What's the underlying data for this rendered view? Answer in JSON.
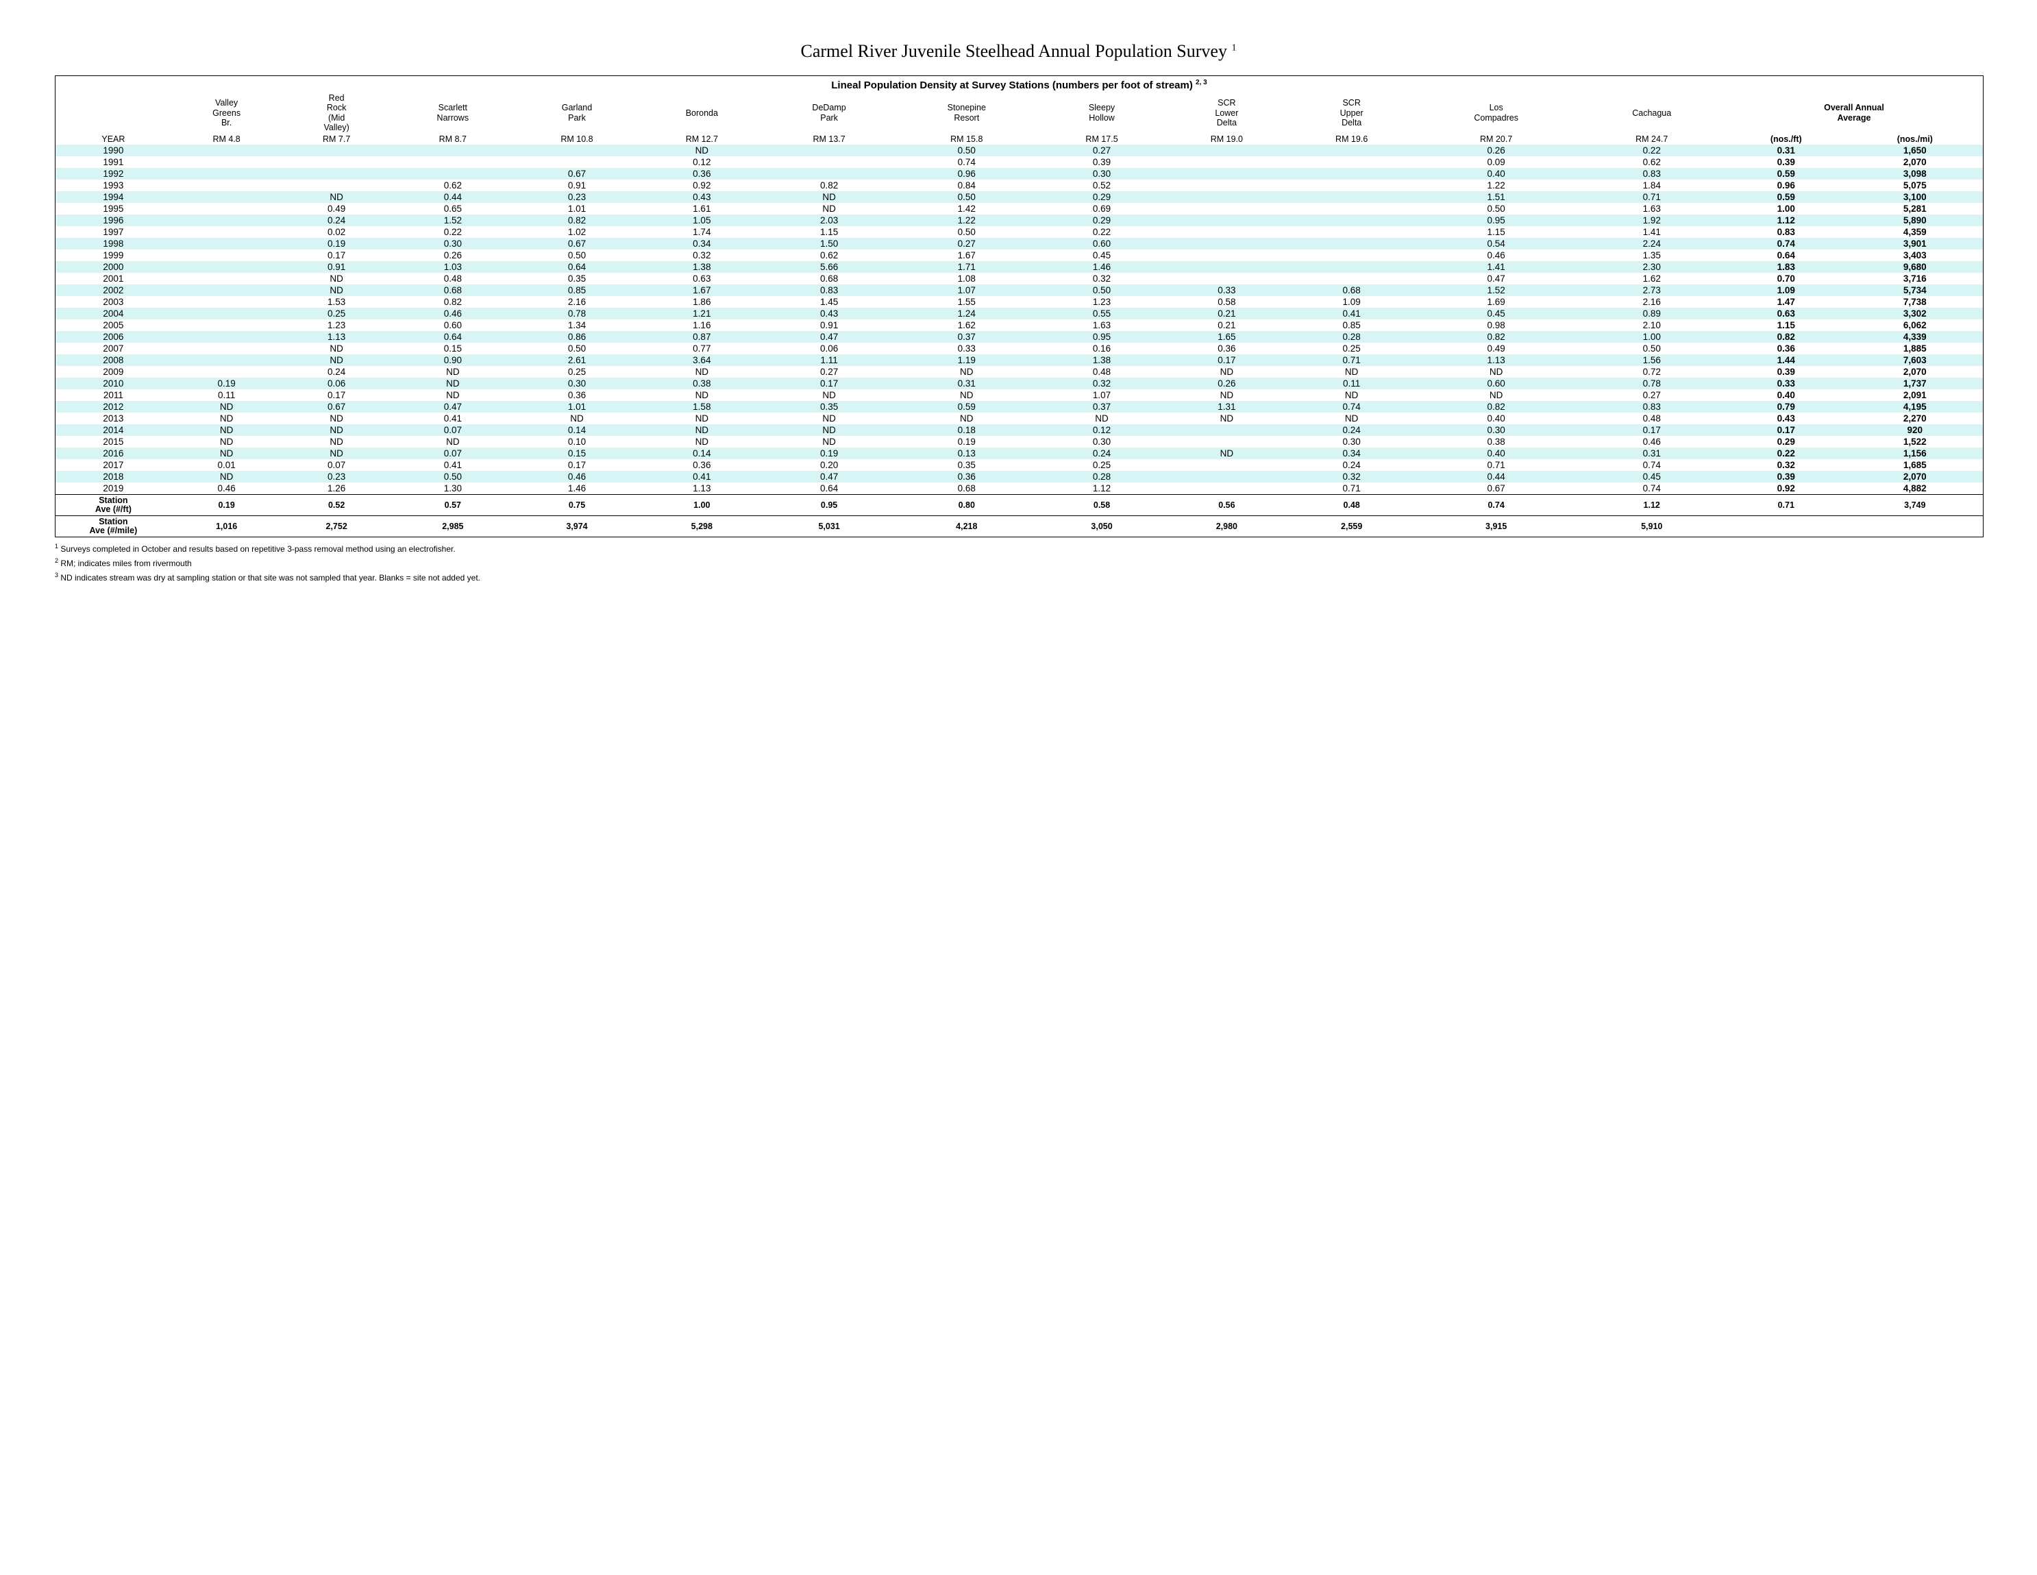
{
  "title": "Carmel River Juvenile Steelhead Annual Population Survey",
  "title_sup": "1",
  "table_title": "Lineal Population Density at Survey Stations (numbers per foot of stream)",
  "table_title_sup": "2, 3",
  "year_label": "YEAR",
  "overall_label": "Overall Annual Average",
  "stations": [
    {
      "name": "Valley Greens Br.",
      "rm": "RM 4.8"
    },
    {
      "name": "Red Rock (Mid Valley)",
      "rm": "RM 7.7"
    },
    {
      "name": "Scarlett Narrows",
      "rm": "RM 8.7"
    },
    {
      "name": "Garland Park",
      "rm": "RM 10.8"
    },
    {
      "name": "Boronda",
      "rm": "RM 12.7"
    },
    {
      "name": "DeDamp Park",
      "rm": "RM 13.7"
    },
    {
      "name": "Stonepine Resort",
      "rm": "RM 15.8"
    },
    {
      "name": "Sleepy Hollow",
      "rm": "RM 17.5"
    },
    {
      "name": "SCR Lower Delta",
      "rm": "RM 19.0"
    },
    {
      "name": "SCR Upper Delta",
      "rm": "RM 19.6"
    },
    {
      "name": "Los Compadres",
      "rm": "RM 20.7"
    },
    {
      "name": "Cachagua",
      "rm": "RM 24.7"
    }
  ],
  "overall_units": [
    "(nos./ft)",
    "(nos./mi)"
  ],
  "rows": [
    {
      "year": "1990",
      "v": [
        "",
        "",
        "",
        "",
        "ND",
        "",
        "0.50",
        "0.27",
        "",
        "",
        "0.26",
        "0.22"
      ],
      "aft": "0.31",
      "ami": "1,650"
    },
    {
      "year": "1991",
      "v": [
        "",
        "",
        "",
        "",
        "0.12",
        "",
        "0.74",
        "0.39",
        "",
        "",
        "0.09",
        "0.62"
      ],
      "aft": "0.39",
      "ami": "2,070"
    },
    {
      "year": "1992",
      "v": [
        "",
        "",
        "",
        "0.67",
        "0.36",
        "",
        "0.96",
        "0.30",
        "",
        "",
        "0.40",
        "0.83"
      ],
      "aft": "0.59",
      "ami": "3,098"
    },
    {
      "year": "1993",
      "v": [
        "",
        "",
        "0.62",
        "0.91",
        "0.92",
        "0.82",
        "0.84",
        "0.52",
        "",
        "",
        "1.22",
        "1.84"
      ],
      "aft": "0.96",
      "ami": "5,075"
    },
    {
      "year": "1994",
      "v": [
        "",
        "ND",
        "0.44",
        "0.23",
        "0.43",
        "ND",
        "0.50",
        "0.29",
        "",
        "",
        "1.51",
        "0.71"
      ],
      "aft": "0.59",
      "ami": "3,100"
    },
    {
      "year": "1995",
      "v": [
        "",
        "0.49",
        "0.65",
        "1.01",
        "1.61",
        "ND",
        "1.42",
        "0.69",
        "",
        "",
        "0.50",
        "1.63"
      ],
      "aft": "1.00",
      "ami": "5,281"
    },
    {
      "year": "1996",
      "v": [
        "",
        "0.24",
        "1.52",
        "0.82",
        "1.05",
        "2.03",
        "1.22",
        "0.29",
        "",
        "",
        "0.95",
        "1.92"
      ],
      "aft": "1.12",
      "ami": "5,890"
    },
    {
      "year": "1997",
      "v": [
        "",
        "0.02",
        "0.22",
        "1.02",
        "1.74",
        "1.15",
        "0.50",
        "0.22",
        "",
        "",
        "1.15",
        "1.41"
      ],
      "aft": "0.83",
      "ami": "4,359"
    },
    {
      "year": "1998",
      "v": [
        "",
        "0.19",
        "0.30",
        "0.67",
        "0.34",
        "1.50",
        "0.27",
        "0.60",
        "",
        "",
        "0.54",
        "2.24"
      ],
      "aft": "0.74",
      "ami": "3,901"
    },
    {
      "year": "1999",
      "v": [
        "",
        "0.17",
        "0.26",
        "0.50",
        "0.32",
        "0.62",
        "1.67",
        "0.45",
        "",
        "",
        "0.46",
        "1.35"
      ],
      "aft": "0.64",
      "ami": "3,403"
    },
    {
      "year": "2000",
      "v": [
        "",
        "0.91",
        "1.03",
        "0.64",
        "1.38",
        "5.66",
        "1.71",
        "1.46",
        "",
        "",
        "1.41",
        "2.30"
      ],
      "aft": "1.83",
      "ami": "9,680"
    },
    {
      "year": "2001",
      "v": [
        "",
        "ND",
        "0.48",
        "0.35",
        "0.63",
        "0.68",
        "1.08",
        "0.32",
        "",
        "",
        "0.47",
        "1.62"
      ],
      "aft": "0.70",
      "ami": "3,716"
    },
    {
      "year": "2002",
      "v": [
        "",
        "ND",
        "0.68",
        "0.85",
        "1.67",
        "0.83",
        "1.07",
        "0.50",
        "0.33",
        "0.68",
        "1.52",
        "2.73"
      ],
      "aft": "1.09",
      "ami": "5,734"
    },
    {
      "year": "2003",
      "v": [
        "",
        "1.53",
        "0.82",
        "2.16",
        "1.86",
        "1.45",
        "1.55",
        "1.23",
        "0.58",
        "1.09",
        "1.69",
        "2.16"
      ],
      "aft": "1.47",
      "ami": "7,738"
    },
    {
      "year": "2004",
      "v": [
        "",
        "0.25",
        "0.46",
        "0.78",
        "1.21",
        "0.43",
        "1.24",
        "0.55",
        "0.21",
        "0.41",
        "0.45",
        "0.89"
      ],
      "aft": "0.63",
      "ami": "3,302"
    },
    {
      "year": "2005",
      "v": [
        "",
        "1.23",
        "0.60",
        "1.34",
        "1.16",
        "0.91",
        "1.62",
        "1.63",
        "0.21",
        "0.85",
        "0.98",
        "2.10"
      ],
      "aft": "1.15",
      "ami": "6,062"
    },
    {
      "year": "2006",
      "v": [
        "",
        "1.13",
        "0.64",
        "0.86",
        "0.87",
        "0.47",
        "0.37",
        "0.95",
        "1.65",
        "0.28",
        "0.82",
        "1.00"
      ],
      "aft": "0.82",
      "ami": "4,339"
    },
    {
      "year": "2007",
      "v": [
        "",
        "ND",
        "0.15",
        "0.50",
        "0.77",
        "0.06",
        "0.33",
        "0.16",
        "0.36",
        "0.25",
        "0.49",
        "0.50"
      ],
      "aft": "0.36",
      "ami": "1,885"
    },
    {
      "year": "2008",
      "v": [
        "",
        "ND",
        "0.90",
        "2.61",
        "3.64",
        "1.11",
        "1.19",
        "1.38",
        "0.17",
        "0.71",
        "1.13",
        "1.56"
      ],
      "aft": "1.44",
      "ami": "7,603"
    },
    {
      "year": "2009",
      "v": [
        "",
        "0.24",
        "ND",
        "0.25",
        "ND",
        "0.27",
        "ND",
        "0.48",
        "ND",
        "ND",
        "ND",
        "0.72"
      ],
      "aft": "0.39",
      "ami": "2,070"
    },
    {
      "year": "2010",
      "v": [
        "0.19",
        "0.06",
        "ND",
        "0.30",
        "0.38",
        "0.17",
        "0.31",
        "0.32",
        "0.26",
        "0.11",
        "0.60",
        "0.78"
      ],
      "aft": "0.33",
      "ami": "1,737"
    },
    {
      "year": "2011",
      "v": [
        "0.11",
        "0.17",
        "ND",
        "0.36",
        "ND",
        "ND",
        "ND",
        "1.07",
        "ND",
        "ND",
        "ND",
        "0.27"
      ],
      "aft": "0.40",
      "ami": "2,091"
    },
    {
      "year": "2012",
      "v": [
        "ND",
        "0.67",
        "0.47",
        "1.01",
        "1.58",
        "0.35",
        "0.59",
        "0.37",
        "1.31",
        "0.74",
        "0.82",
        "0.83"
      ],
      "aft": "0.79",
      "ami": "4,195"
    },
    {
      "year": "2013",
      "v": [
        "ND",
        "ND",
        "0.41",
        "ND",
        "ND",
        "ND",
        "ND",
        "ND",
        "ND",
        "ND",
        "0.40",
        "0.48"
      ],
      "aft": "0.43",
      "ami": "2,270"
    },
    {
      "year": "2014",
      "v": [
        "ND",
        "ND",
        "0.07",
        "0.14",
        "ND",
        "ND",
        "0.18",
        "0.12",
        "",
        "0.24",
        "0.30",
        "0.17"
      ],
      "aft": "0.17",
      "ami": "920"
    },
    {
      "year": "2015",
      "v": [
        "ND",
        "ND",
        "ND",
        "0.10",
        "ND",
        "ND",
        "0.19",
        "0.30",
        "",
        "0.30",
        "0.38",
        "0.46"
      ],
      "aft": "0.29",
      "ami": "1,522"
    },
    {
      "year": "2016",
      "v": [
        "ND",
        "ND",
        "0.07",
        "0.15",
        "0.14",
        "0.19",
        "0.13",
        "0.24",
        "ND",
        "0.34",
        "0.40",
        "0.31"
      ],
      "aft": "0.22",
      "ami": "1,156"
    },
    {
      "year": "2017",
      "v": [
        "0.01",
        "0.07",
        "0.41",
        "0.17",
        "0.36",
        "0.20",
        "0.35",
        "0.25",
        "",
        "0.24",
        "0.71",
        "0.74"
      ],
      "aft": "0.32",
      "ami": "1,685"
    },
    {
      "year": "2018",
      "v": [
        "ND",
        "0.23",
        "0.50",
        "0.46",
        "0.41",
        "0.47",
        "0.36",
        "0.28",
        "",
        "0.32",
        "0.44",
        "0.45"
      ],
      "aft": "0.39",
      "ami": "2,070"
    },
    {
      "year": "2019",
      "v": [
        "0.46",
        "1.26",
        "1.30",
        "1.46",
        "1.13",
        "0.64",
        "0.68",
        "1.12",
        "",
        "0.71",
        "0.67",
        "0.74"
      ],
      "aft": "0.92",
      "ami": "4,882"
    }
  ],
  "summary": [
    {
      "label": "Station Ave (#/ft)",
      "v": [
        "0.19",
        "0.52",
        "0.57",
        "0.75",
        "1.00",
        "0.95",
        "0.80",
        "0.58",
        "0.56",
        "0.48",
        "0.74",
        "1.12"
      ],
      "aft": "0.71",
      "ami": "3,749"
    },
    {
      "label": "Station Ave (#/mile)",
      "v": [
        "1,016",
        "2,752",
        "2,985",
        "3,974",
        "5,298",
        "5,031",
        "4,218",
        "3,050",
        "2,980",
        "2,559",
        "3,915",
        "5,910"
      ],
      "aft": "",
      "ami": ""
    }
  ],
  "footnotes": [
    {
      "sup": "1",
      "text": " Surveys completed in October and results based on repetitive 3-pass removal method using an electrofisher."
    },
    {
      "sup": "2",
      "text": " RM; indicates miles from rivermouth"
    },
    {
      "sup": "3",
      "text": " ND indicates stream was dry at sampling station or that site was not sampled that year.  Blanks = site not added yet."
    }
  ],
  "colors": {
    "row_even_bg": "#d8f5f5",
    "row_odd_bg": "#ffffff",
    "border": "#000000",
    "text": "#000000"
  }
}
